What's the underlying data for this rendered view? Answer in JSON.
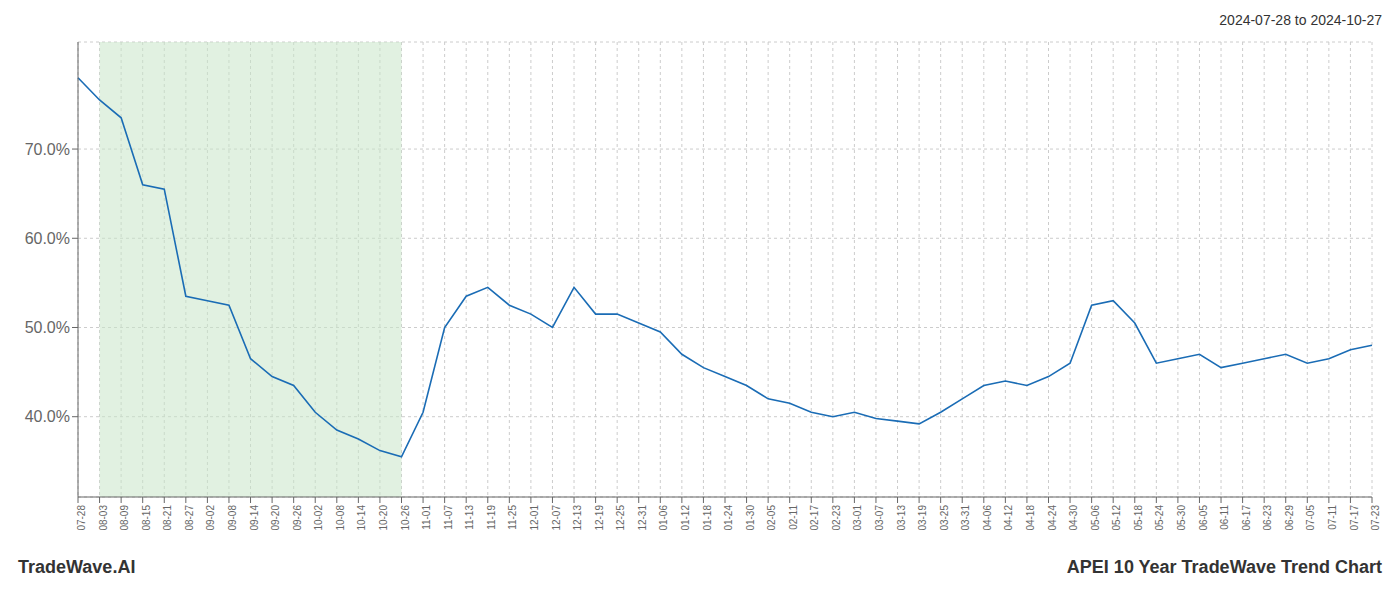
{
  "chart_data": {
    "type": "line",
    "title": "APEI 10 Year TradeWave Trend Chart",
    "subtitle": "2024-07-28 to 2024-10-27",
    "annotations": [
      "TradeWave.AI"
    ],
    "categories": [
      "07-28",
      "08-03",
      "08-09",
      "08-15",
      "08-21",
      "08-27",
      "09-02",
      "09-08",
      "09-14",
      "09-20",
      "09-26",
      "10-02",
      "10-08",
      "10-14",
      "10-20",
      "10-26",
      "11-01",
      "11-07",
      "11-13",
      "11-19",
      "11-25",
      "12-01",
      "12-07",
      "12-13",
      "12-19",
      "12-25",
      "12-31",
      "01-06",
      "01-12",
      "01-18",
      "01-24",
      "01-30",
      "02-05",
      "02-11",
      "02-17",
      "02-23",
      "03-01",
      "03-07",
      "03-13",
      "03-19",
      "03-25",
      "03-31",
      "04-06",
      "04-12",
      "04-18",
      "04-24",
      "04-30",
      "05-06",
      "05-12",
      "05-18",
      "05-24",
      "05-30",
      "06-05",
      "06-11",
      "06-17",
      "06-23",
      "06-29",
      "07-05",
      "07-11",
      "07-17",
      "07-23"
    ],
    "values": [
      78.0,
      75.5,
      73.5,
      66.0,
      65.5,
      53.5,
      53.0,
      52.5,
      46.5,
      44.5,
      43.5,
      40.5,
      38.5,
      37.5,
      36.2,
      35.5,
      40.5,
      50.0,
      53.5,
      54.5,
      52.5,
      51.5,
      50.0,
      54.5,
      51.5,
      51.5,
      50.5,
      49.5,
      47.0,
      45.5,
      44.5,
      43.5,
      42.0,
      41.5,
      40.5,
      40.0,
      40.5,
      39.8,
      39.5,
      39.2,
      40.5,
      42.0,
      43.5,
      44.0,
      43.5,
      44.5,
      46.0,
      52.5,
      53.0,
      50.5,
      46.0,
      46.5,
      47.0,
      45.5,
      46.0,
      46.5,
      47.0,
      46.0,
      46.5,
      47.5,
      48.0
    ],
    "color": "#1a6cb5",
    "ylim": [
      31,
      82
    ],
    "yticks": [
      {
        "value": 40,
        "label": "40.0%"
      },
      {
        "value": 50,
        "label": "50.0%"
      },
      {
        "value": 60,
        "label": "60.0%"
      },
      {
        "value": 70,
        "label": "70.0%"
      }
    ],
    "grid": true,
    "shaded_span": {
      "start": "08-03",
      "end": "10-26",
      "color": "#c8e6c9"
    }
  }
}
